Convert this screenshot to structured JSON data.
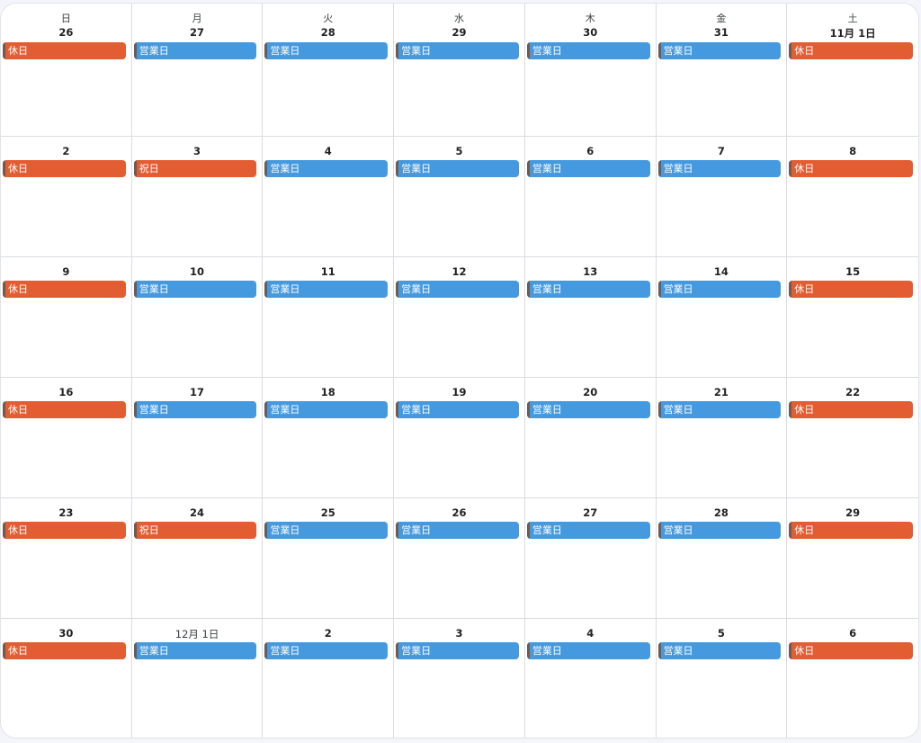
{
  "weekdays": [
    "日",
    "月",
    "火",
    "水",
    "木",
    "金",
    "土"
  ],
  "colors": {
    "holiday": "#e35d33",
    "business": "#4599de"
  },
  "weeks": [
    {
      "days": [
        {
          "date": "26",
          "event": "休日",
          "type": "holiday"
        },
        {
          "date": "27",
          "event": "営業日",
          "type": "business"
        },
        {
          "date": "28",
          "event": "営業日",
          "type": "business"
        },
        {
          "date": "29",
          "event": "営業日",
          "type": "business"
        },
        {
          "date": "30",
          "event": "営業日",
          "type": "business"
        },
        {
          "date": "31",
          "event": "営業日",
          "type": "business"
        },
        {
          "date": "11月 1日",
          "event": "休日",
          "type": "holiday"
        }
      ]
    },
    {
      "days": [
        {
          "date": "2",
          "event": "休日",
          "type": "holiday"
        },
        {
          "date": "3",
          "event": "祝日",
          "type": "holiday"
        },
        {
          "date": "4",
          "event": "営業日",
          "type": "business"
        },
        {
          "date": "5",
          "event": "営業日",
          "type": "business"
        },
        {
          "date": "6",
          "event": "営業日",
          "type": "business"
        },
        {
          "date": "7",
          "event": "営業日",
          "type": "business"
        },
        {
          "date": "8",
          "event": "休日",
          "type": "holiday"
        }
      ]
    },
    {
      "days": [
        {
          "date": "9",
          "event": "休日",
          "type": "holiday"
        },
        {
          "date": "10",
          "event": "営業日",
          "type": "business"
        },
        {
          "date": "11",
          "event": "営業日",
          "type": "business"
        },
        {
          "date": "12",
          "event": "営業日",
          "type": "business"
        },
        {
          "date": "13",
          "event": "営業日",
          "type": "business"
        },
        {
          "date": "14",
          "event": "営業日",
          "type": "business"
        },
        {
          "date": "15",
          "event": "休日",
          "type": "holiday"
        }
      ]
    },
    {
      "days": [
        {
          "date": "16",
          "event": "休日",
          "type": "holiday"
        },
        {
          "date": "17",
          "event": "営業日",
          "type": "business"
        },
        {
          "date": "18",
          "event": "営業日",
          "type": "business"
        },
        {
          "date": "19",
          "event": "営業日",
          "type": "business"
        },
        {
          "date": "20",
          "event": "営業日",
          "type": "business"
        },
        {
          "date": "21",
          "event": "営業日",
          "type": "business"
        },
        {
          "date": "22",
          "event": "休日",
          "type": "holiday"
        }
      ]
    },
    {
      "days": [
        {
          "date": "23",
          "event": "休日",
          "type": "holiday"
        },
        {
          "date": "24",
          "event": "祝日",
          "type": "holiday"
        },
        {
          "date": "25",
          "event": "営業日",
          "type": "business"
        },
        {
          "date": "26",
          "event": "営業日",
          "type": "business"
        },
        {
          "date": "27",
          "event": "営業日",
          "type": "business"
        },
        {
          "date": "28",
          "event": "営業日",
          "type": "business"
        },
        {
          "date": "29",
          "event": "休日",
          "type": "holiday"
        }
      ]
    },
    {
      "days": [
        {
          "date": "30",
          "event": "休日",
          "type": "holiday"
        },
        {
          "date": "12月 1日",
          "event": "営業日",
          "type": "business"
        },
        {
          "date": "2",
          "event": "営業日",
          "type": "business"
        },
        {
          "date": "3",
          "event": "営業日",
          "type": "business"
        },
        {
          "date": "4",
          "event": "営業日",
          "type": "business"
        },
        {
          "date": "5",
          "event": "営業日",
          "type": "business"
        },
        {
          "date": "6",
          "event": "休日",
          "type": "holiday"
        }
      ]
    }
  ]
}
